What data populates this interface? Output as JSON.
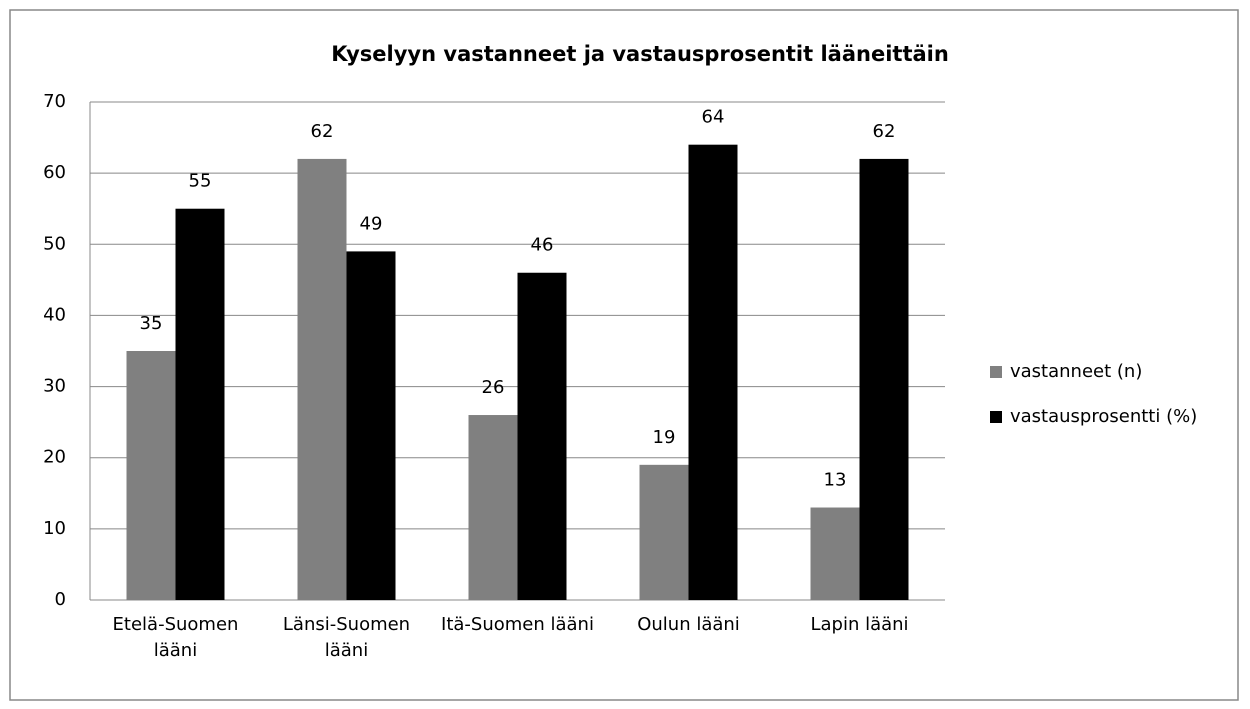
{
  "chart_data": {
    "type": "bar",
    "title": "Kyselyyn vastanneet ja vastausprosentit lääneittäin",
    "categories": [
      "Etelä-Suomen lääni",
      "Länsi-Suomen lääni",
      "Itä-Suomen lääni",
      "Oulun lääni",
      "Lapin lääni"
    ],
    "series": [
      {
        "name": "vastanneet (n)",
        "color": "#808080",
        "values": [
          35,
          62,
          26,
          19,
          13
        ]
      },
      {
        "name": "vastausprosentti (%)",
        "color": "#000000",
        "values": [
          55,
          49,
          46,
          64,
          62
        ]
      }
    ],
    "ylim": [
      0,
      70
    ],
    "yticks": [
      0,
      10,
      20,
      30,
      40,
      50,
      60,
      70
    ],
    "grid": true,
    "legend": "right"
  }
}
